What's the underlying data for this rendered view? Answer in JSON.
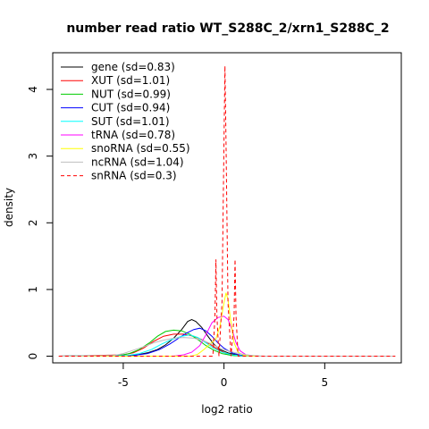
{
  "chart_data": {
    "type": "line",
    "title": "number read ratio WT_S288C_2/xrn1_S288C_2",
    "xlabel": "log2 ratio",
    "ylabel": "density",
    "xlim": [
      -8.5,
      8.8
    ],
    "ylim": [
      -0.1,
      4.55
    ],
    "x_ticks": [
      -5,
      0,
      5
    ],
    "y_ticks": [
      0,
      1,
      2,
      3,
      4
    ],
    "grid": false,
    "legend_position": "top-left",
    "series": [
      {
        "name": "gene (sd=0.83)",
        "color": "#000000",
        "dash": false,
        "points": [
          [
            -8.2,
            0
          ],
          [
            -5,
            0.005
          ],
          [
            -4.3,
            0.02
          ],
          [
            -3.8,
            0.05
          ],
          [
            -3.3,
            0.1
          ],
          [
            -2.9,
            0.17
          ],
          [
            -2.5,
            0.27
          ],
          [
            -2.1,
            0.4
          ],
          [
            -1.8,
            0.52
          ],
          [
            -1.6,
            0.55
          ],
          [
            -1.4,
            0.52
          ],
          [
            -1.1,
            0.43
          ],
          [
            -0.8,
            0.3
          ],
          [
            -0.5,
            0.18
          ],
          [
            -0.2,
            0.1
          ],
          [
            0.2,
            0.05
          ],
          [
            0.6,
            0.02
          ],
          [
            1.2,
            0.005
          ],
          [
            2,
            0
          ],
          [
            8.5,
            0
          ]
        ]
      },
      {
        "name": "XUT (sd=1.01)",
        "color": "#ff0000",
        "dash": false,
        "points": [
          [
            -8.2,
            0
          ],
          [
            -5,
            0.02
          ],
          [
            -4.5,
            0.05
          ],
          [
            -4,
            0.12
          ],
          [
            -3.5,
            0.22
          ],
          [
            -3,
            0.3
          ],
          [
            -2.5,
            0.33
          ],
          [
            -2,
            0.33
          ],
          [
            -1.5,
            0.3
          ],
          [
            -1.1,
            0.25
          ],
          [
            -0.7,
            0.18
          ],
          [
            -0.3,
            0.1
          ],
          [
            0.1,
            0.04
          ],
          [
            0.5,
            0.01
          ],
          [
            1,
            0
          ],
          [
            8.5,
            0
          ]
        ]
      },
      {
        "name": "NUT (sd=0.99)",
        "color": "#00cc00",
        "dash": false,
        "points": [
          [
            -8.2,
            0
          ],
          [
            -5.2,
            0.01
          ],
          [
            -4.7,
            0.04
          ],
          [
            -4.2,
            0.1
          ],
          [
            -3.7,
            0.2
          ],
          [
            -3.3,
            0.3
          ],
          [
            -2.9,
            0.37
          ],
          [
            -2.5,
            0.39
          ],
          [
            -2.1,
            0.38
          ],
          [
            -1.7,
            0.33
          ],
          [
            -1.3,
            0.25
          ],
          [
            -0.9,
            0.16
          ],
          [
            -0.5,
            0.09
          ],
          [
            -0.1,
            0.04
          ],
          [
            0.4,
            0.01
          ],
          [
            1,
            0
          ],
          [
            8.5,
            0
          ]
        ]
      },
      {
        "name": "CUT (sd=0.94)",
        "color": "#0000ff",
        "dash": false,
        "points": [
          [
            -8.2,
            0
          ],
          [
            -4.5,
            0.01
          ],
          [
            -3.8,
            0.04
          ],
          [
            -3.2,
            0.1
          ],
          [
            -2.7,
            0.18
          ],
          [
            -2.3,
            0.26
          ],
          [
            -1.9,
            0.34
          ],
          [
            -1.5,
            0.4
          ],
          [
            -1.2,
            0.42
          ],
          [
            -0.9,
            0.38
          ],
          [
            -0.6,
            0.3
          ],
          [
            -0.3,
            0.2
          ],
          [
            0,
            0.12
          ],
          [
            0.4,
            0.05
          ],
          [
            0.9,
            0.01
          ],
          [
            1.5,
            0
          ],
          [
            8.5,
            0
          ]
        ]
      },
      {
        "name": "SUT (sd=1.01)",
        "color": "#00ffff",
        "dash": false,
        "points": [
          [
            -8.2,
            0
          ],
          [
            -4.8,
            0.01
          ],
          [
            -4.2,
            0.04
          ],
          [
            -3.6,
            0.1
          ],
          [
            -3.1,
            0.18
          ],
          [
            -2.6,
            0.25
          ],
          [
            -2.1,
            0.3
          ],
          [
            -1.7,
            0.32
          ],
          [
            -1.3,
            0.28
          ],
          [
            -0.9,
            0.2
          ],
          [
            -0.5,
            0.12
          ],
          [
            -0.1,
            0.06
          ],
          [
            0.4,
            0.02
          ],
          [
            1,
            0
          ],
          [
            8.5,
            0
          ]
        ]
      },
      {
        "name": "tRNA (sd=0.78)",
        "color": "#ff00ff",
        "dash": false,
        "points": [
          [
            -8.2,
            0
          ],
          [
            -2.5,
            0
          ],
          [
            -2,
            0.02
          ],
          [
            -1.6,
            0.06
          ],
          [
            -1.2,
            0.16
          ],
          [
            -0.9,
            0.32
          ],
          [
            -0.6,
            0.5
          ],
          [
            -0.3,
            0.58
          ],
          [
            0,
            0.6
          ],
          [
            0.2,
            0.55
          ],
          [
            0.4,
            0.4
          ],
          [
            0.6,
            0.2
          ],
          [
            0.8,
            0.08
          ],
          [
            1.1,
            0.02
          ],
          [
            1.5,
            0
          ],
          [
            8.5,
            0
          ]
        ]
      },
      {
        "name": "snoRNA (sd=0.55)",
        "color": "#ffff00",
        "dash": false,
        "points": [
          [
            -8.2,
            0
          ],
          [
            -1.6,
            0
          ],
          [
            -1.3,
            0.03
          ],
          [
            -1,
            0.1
          ],
          [
            -0.7,
            0.18
          ],
          [
            -0.4,
            0.26
          ],
          [
            -0.2,
            0.45
          ],
          [
            0,
            0.8
          ],
          [
            0.1,
            0.95
          ],
          [
            0.2,
            0.85
          ],
          [
            0.35,
            0.5
          ],
          [
            0.5,
            0.2
          ],
          [
            0.7,
            0.06
          ],
          [
            1,
            0.01
          ],
          [
            1.4,
            0
          ],
          [
            8.5,
            0
          ]
        ]
      },
      {
        "name": "ncRNA (sd=1.04)",
        "color": "#bebebe",
        "dash": false,
        "points": [
          [
            -8.2,
            0
          ],
          [
            -5.5,
            0.01
          ],
          [
            -5,
            0.04
          ],
          [
            -4.5,
            0.09
          ],
          [
            -4,
            0.14
          ],
          [
            -3.5,
            0.2
          ],
          [
            -3,
            0.24
          ],
          [
            -2.5,
            0.27
          ],
          [
            -2,
            0.28
          ],
          [
            -1.5,
            0.27
          ],
          [
            -1,
            0.23
          ],
          [
            -0.6,
            0.18
          ],
          [
            -0.2,
            0.12
          ],
          [
            0.2,
            0.08
          ],
          [
            0.6,
            0.05
          ],
          [
            1.1,
            0.02
          ],
          [
            1.8,
            0
          ],
          [
            8.5,
            0
          ]
        ]
      },
      {
        "name": "snRNA (sd=0.3)",
        "color": "#ff0000",
        "dash": true,
        "points": [
          [
            -8.2,
            0
          ],
          [
            -0.55,
            0
          ],
          [
            -0.45,
            0.6
          ],
          [
            -0.4,
            1.45
          ],
          [
            -0.35,
            0.6
          ],
          [
            -0.25,
            0
          ],
          [
            -0.1,
            0.8
          ],
          [
            0,
            3.2
          ],
          [
            0.05,
            4.35
          ],
          [
            0.1,
            3.2
          ],
          [
            0.2,
            0.8
          ],
          [
            0.35,
            0
          ],
          [
            0.5,
            0.6
          ],
          [
            0.55,
            1.45
          ],
          [
            0.6,
            0.6
          ],
          [
            0.7,
            0
          ],
          [
            8.5,
            0
          ]
        ]
      }
    ]
  }
}
